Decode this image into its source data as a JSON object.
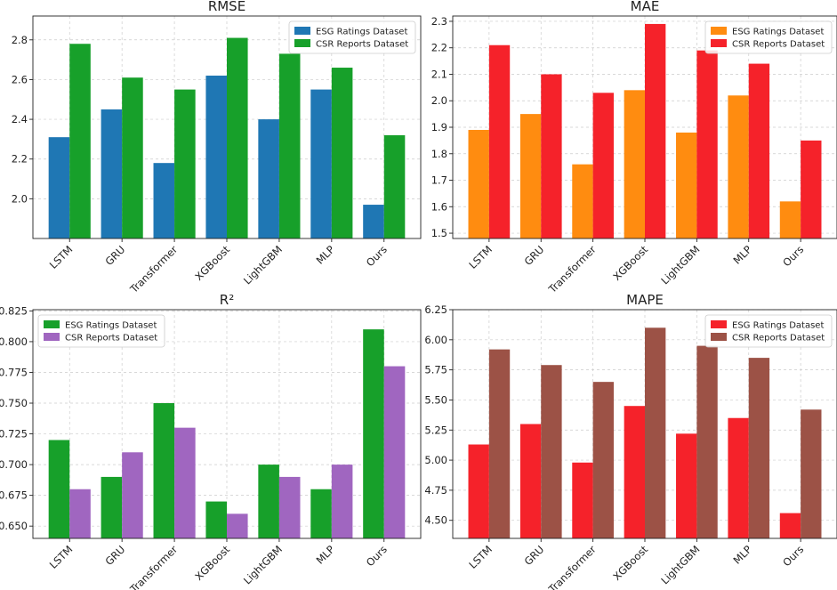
{
  "chart_data": [
    {
      "type": "bar",
      "title": "RMSE",
      "categories": [
        "LSTM",
        "GRU",
        "Transformer",
        "XGBoost",
        "LightGBM",
        "MLP",
        "Ours"
      ],
      "series": [
        {
          "name": "ESG Ratings Dataset",
          "color": "#1f77b4",
          "values": [
            2.31,
            2.45,
            2.18,
            2.62,
            2.4,
            2.55,
            1.97
          ]
        },
        {
          "name": "CSR Reports Dataset",
          "color": "#17a02a",
          "values": [
            2.78,
            2.61,
            2.55,
            2.81,
            2.73,
            2.66,
            2.32
          ]
        }
      ],
      "ylim": [
        1.8,
        2.92
      ],
      "yticks": [
        "2.0",
        "2.2",
        "2.4",
        "2.6",
        "2.8"
      ],
      "legend": "top-right"
    },
    {
      "type": "bar",
      "title": "MAE",
      "categories": [
        "LSTM",
        "GRU",
        "Transformer",
        "XGBoost",
        "LightGBM",
        "MLP",
        "Ours"
      ],
      "series": [
        {
          "name": "ESG Ratings Dataset",
          "color": "#ff8c10",
          "values": [
            1.89,
            1.95,
            1.76,
            2.04,
            1.88,
            2.02,
            1.62
          ]
        },
        {
          "name": "CSR Reports Dataset",
          "color": "#f5222a",
          "values": [
            2.21,
            2.1,
            2.03,
            2.29,
            2.19,
            2.14,
            1.85
          ]
        }
      ],
      "ylim": [
        1.48,
        2.32
      ],
      "yticks": [
        "1.5",
        "1.6",
        "1.7",
        "1.8",
        "1.9",
        "2.0",
        "2.1",
        "2.2",
        "2.3"
      ],
      "legend": "top-right"
    },
    {
      "type": "bar",
      "title": "R²",
      "categories": [
        "LSTM",
        "GRU",
        "Transformer",
        "XGBoost",
        "LightGBM",
        "MLP",
        "Ours"
      ],
      "series": [
        {
          "name": "ESG Ratings Dataset",
          "color": "#17a02a",
          "values": [
            0.72,
            0.69,
            0.75,
            0.67,
            0.7,
            0.68,
            0.81
          ]
        },
        {
          "name": "CSR Reports Dataset",
          "color": "#a066c0",
          "values": [
            0.68,
            0.71,
            0.73,
            0.66,
            0.69,
            0.7,
            0.78
          ]
        }
      ],
      "ylim": [
        0.64,
        0.826
      ],
      "yticks": [
        "0.650",
        "0.675",
        "0.700",
        "0.725",
        "0.750",
        "0.775",
        "0.800",
        "0.825"
      ],
      "legend": "top-left"
    },
    {
      "type": "bar",
      "title": "MAPE",
      "categories": [
        "LSTM",
        "GRU",
        "Transformer",
        "XGBoost",
        "LightGBM",
        "MLP",
        "Ours"
      ],
      "series": [
        {
          "name": "ESG Ratings Dataset",
          "color": "#f5222a",
          "values": [
            5.13,
            5.3,
            4.98,
            5.45,
            5.22,
            5.35,
            4.56
          ]
        },
        {
          "name": "CSR Reports Dataset",
          "color": "#9c5246",
          "values": [
            5.92,
            5.79,
            5.65,
            6.1,
            5.95,
            5.85,
            5.42
          ]
        }
      ],
      "ylim": [
        4.35,
        6.25
      ],
      "yticks": [
        "4.50",
        "4.75",
        "5.00",
        "5.25",
        "5.50",
        "5.75",
        "6.00",
        "6.25"
      ],
      "legend": "top-right"
    }
  ]
}
